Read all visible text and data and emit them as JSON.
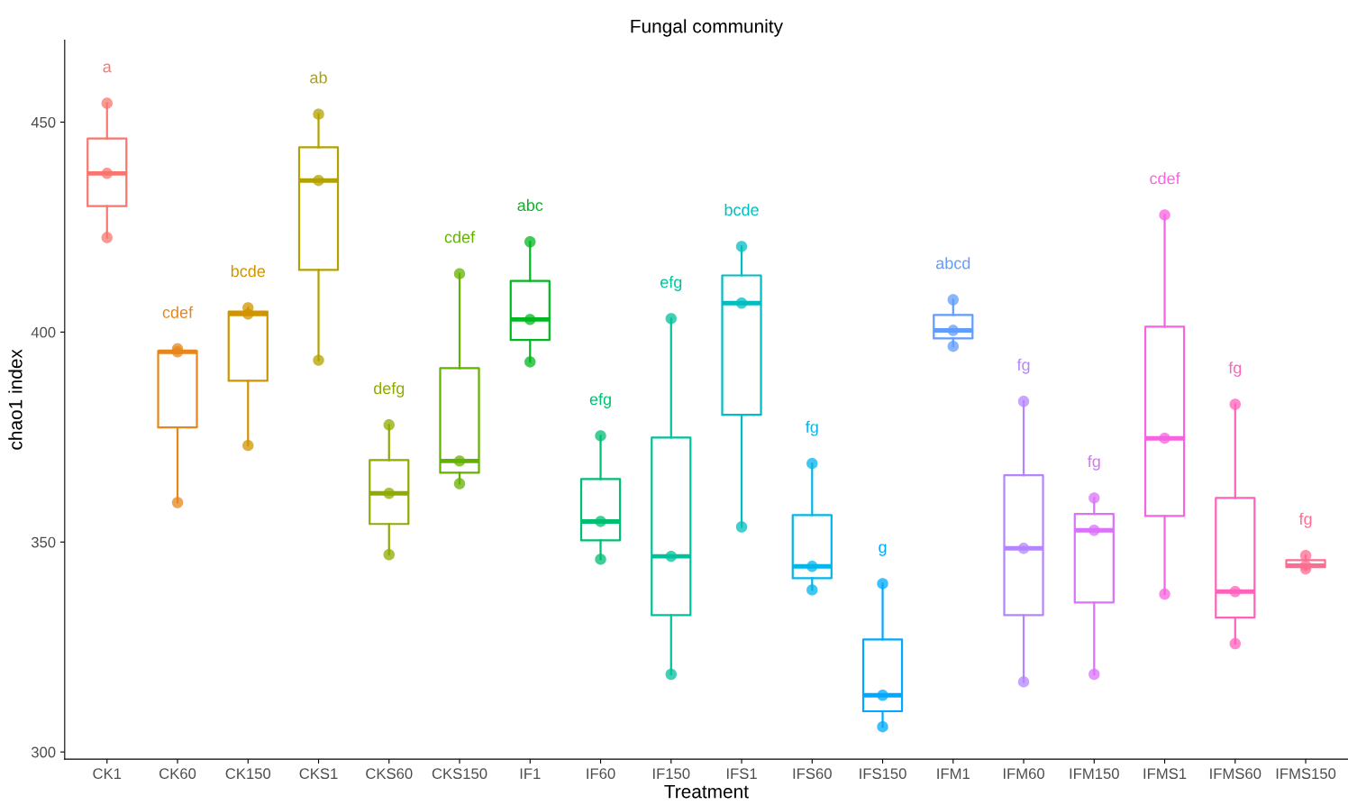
{
  "chart_data": {
    "type": "box",
    "title": "Fungal community",
    "xlabel": "Treatment",
    "ylabel": "chao1 index",
    "categories": [
      "CK1",
      "CK60",
      "CK150",
      "CKS1",
      "CKS60",
      "CKS150",
      "IF1",
      "IF60",
      "IF150",
      "IFS1",
      "IFS60",
      "IFS150",
      "IFM1",
      "IFM60",
      "IFM150",
      "IFMS1",
      "IFMS60",
      "IFMS150"
    ],
    "colors": [
      "#f8766d",
      "#e7861b",
      "#d09400",
      "#b2a100",
      "#8eab00",
      "#64b200",
      "#00b81f",
      "#00be70",
      "#00c19c",
      "#00bdc2",
      "#00b6eb",
      "#00a9ff",
      "#619cff",
      "#b385ff",
      "#db72fb",
      "#f763e0",
      "#ff62bc",
      "#ff6c91"
    ],
    "boxes": [
      {
        "low": 422.5,
        "q1": 430.0,
        "median": 437.8,
        "q3": 446.1,
        "high": 454.5
      },
      {
        "low": 359.4,
        "q1": 377.3,
        "median": 395.3,
        "q3": 395.5,
        "high": 396.0
      },
      {
        "low": 373.0,
        "q1": 388.4,
        "median": 404.3,
        "q3": 404.9,
        "high": 405.8
      },
      {
        "low": 393.3,
        "q1": 414.8,
        "median": 436.1,
        "q3": 444.0,
        "high": 451.9
      },
      {
        "low": 347.0,
        "q1": 354.3,
        "median": 361.6,
        "q3": 369.5,
        "high": 377.9
      },
      {
        "low": 363.9,
        "q1": 366.5,
        "median": 369.3,
        "q3": 391.4,
        "high": 413.9
      },
      {
        "low": 392.9,
        "q1": 398.1,
        "median": 403.0,
        "q3": 412.2,
        "high": 421.5
      },
      {
        "low": 345.9,
        "q1": 350.4,
        "median": 354.9,
        "q3": 365.0,
        "high": 375.3
      },
      {
        "low": 318.5,
        "q1": 332.6,
        "median": 346.6,
        "q3": 374.9,
        "high": 403.2
      },
      {
        "low": 353.6,
        "q1": 380.3,
        "median": 406.9,
        "q3": 413.5,
        "high": 420.4
      },
      {
        "low": 338.6,
        "q1": 341.4,
        "median": 344.2,
        "q3": 356.4,
        "high": 368.7
      },
      {
        "low": 306.0,
        "q1": 309.7,
        "median": 313.5,
        "q3": 326.8,
        "high": 340.1
      },
      {
        "low": 396.6,
        "q1": 398.5,
        "median": 400.4,
        "q3": 404.1,
        "high": 407.7
      },
      {
        "low": 316.7,
        "q1": 332.6,
        "median": 348.5,
        "q3": 365.9,
        "high": 383.5
      },
      {
        "low": 318.5,
        "q1": 335.6,
        "median": 352.8,
        "q3": 356.7,
        "high": 360.5
      },
      {
        "low": 337.6,
        "q1": 356.2,
        "median": 374.7,
        "q3": 401.3,
        "high": 427.9
      },
      {
        "low": 325.8,
        "q1": 332.0,
        "median": 338.2,
        "q3": 360.5,
        "high": 382.8
      },
      {
        "low": 343.6,
        "q1": 344.0,
        "median": 344.4,
        "q3": 345.7,
        "high": 346.8
      }
    ],
    "series": [
      {
        "type": "scatter",
        "x": [
          "CK1",
          "CK1",
          "CK1",
          "CK60",
          "CK60",
          "CK60",
          "CK150",
          "CK150",
          "CK150",
          "CKS1",
          "CKS1",
          "CKS1",
          "CKS60",
          "CKS60",
          "CKS60",
          "CKS150",
          "CKS150",
          "CKS150",
          "IF1",
          "IF1",
          "IF1",
          "IF60",
          "IF60",
          "IF60",
          "IF150",
          "IF150",
          "IF150",
          "IFS1",
          "IFS1",
          "IFS1",
          "IFS60",
          "IFS60",
          "IFS60",
          "IFS150",
          "IFS150",
          "IFS150",
          "IFM1",
          "IFM1",
          "IFM1",
          "IFM60",
          "IFM60",
          "IFM60",
          "IFM150",
          "IFM150",
          "IFM150",
          "IFMS1",
          "IFMS1",
          "IFMS1",
          "IFMS60",
          "IFMS60",
          "IFMS60",
          "IFMS150",
          "IFMS150",
          "IFMS150"
        ],
        "values": [
          422.5,
          437.8,
          454.5,
          359.4,
          395.3,
          396.0,
          373.0,
          404.3,
          405.8,
          393.3,
          436.1,
          451.9,
          347.0,
          361.6,
          377.9,
          363.9,
          369.3,
          413.9,
          392.9,
          403.0,
          421.5,
          345.9,
          354.9,
          375.3,
          318.5,
          346.6,
          403.2,
          353.6,
          406.9,
          420.4,
          338.6,
          344.2,
          368.7,
          306.0,
          313.5,
          340.1,
          396.6,
          400.4,
          407.7,
          316.7,
          348.5,
          383.5,
          318.5,
          352.8,
          360.5,
          337.6,
          374.7,
          427.9,
          325.8,
          338.2,
          382.8,
          343.6,
          344.4,
          346.8
        ],
        "colors": [
          "#f8766d",
          "#f8766d",
          "#f8766d",
          "#e7861b",
          "#e7861b",
          "#e7861b",
          "#d09400",
          "#d09400",
          "#d09400",
          "#b2a100",
          "#b2a100",
          "#b2a100",
          "#8eab00",
          "#8eab00",
          "#8eab00",
          "#64b200",
          "#64b200",
          "#64b200",
          "#00b81f",
          "#00b81f",
          "#00b81f",
          "#00be70",
          "#00be70",
          "#00be70",
          "#00c19c",
          "#00c19c",
          "#00c19c",
          "#00bdc2",
          "#00bdc2",
          "#00bdc2",
          "#00b6eb",
          "#00b6eb",
          "#00b6eb",
          "#00a9ff",
          "#00a9ff",
          "#00a9ff",
          "#619cff",
          "#619cff",
          "#619cff",
          "#b385ff",
          "#b385ff",
          "#b385ff",
          "#db72fb",
          "#db72fb",
          "#db72fb",
          "#f763e0",
          "#f763e0",
          "#f763e0",
          "#ff62bc",
          "#ff62bc",
          "#ff62bc",
          "#ff6c91",
          "#ff6c91",
          "#ff6c91"
        ]
      }
    ],
    "annotations": [
      "a",
      "cdef",
      "bcde",
      "ab",
      "defg",
      "cdef",
      "abc",
      "efg",
      "efg",
      "bcde",
      "fg",
      "g",
      "abcd",
      "fg",
      "fg",
      "cdef",
      "fg",
      "fg"
    ],
    "ylim": [
      298.3,
      469.5
    ],
    "yticks": [
      300,
      350,
      400,
      450
    ],
    "grid": false,
    "legend": false
  }
}
